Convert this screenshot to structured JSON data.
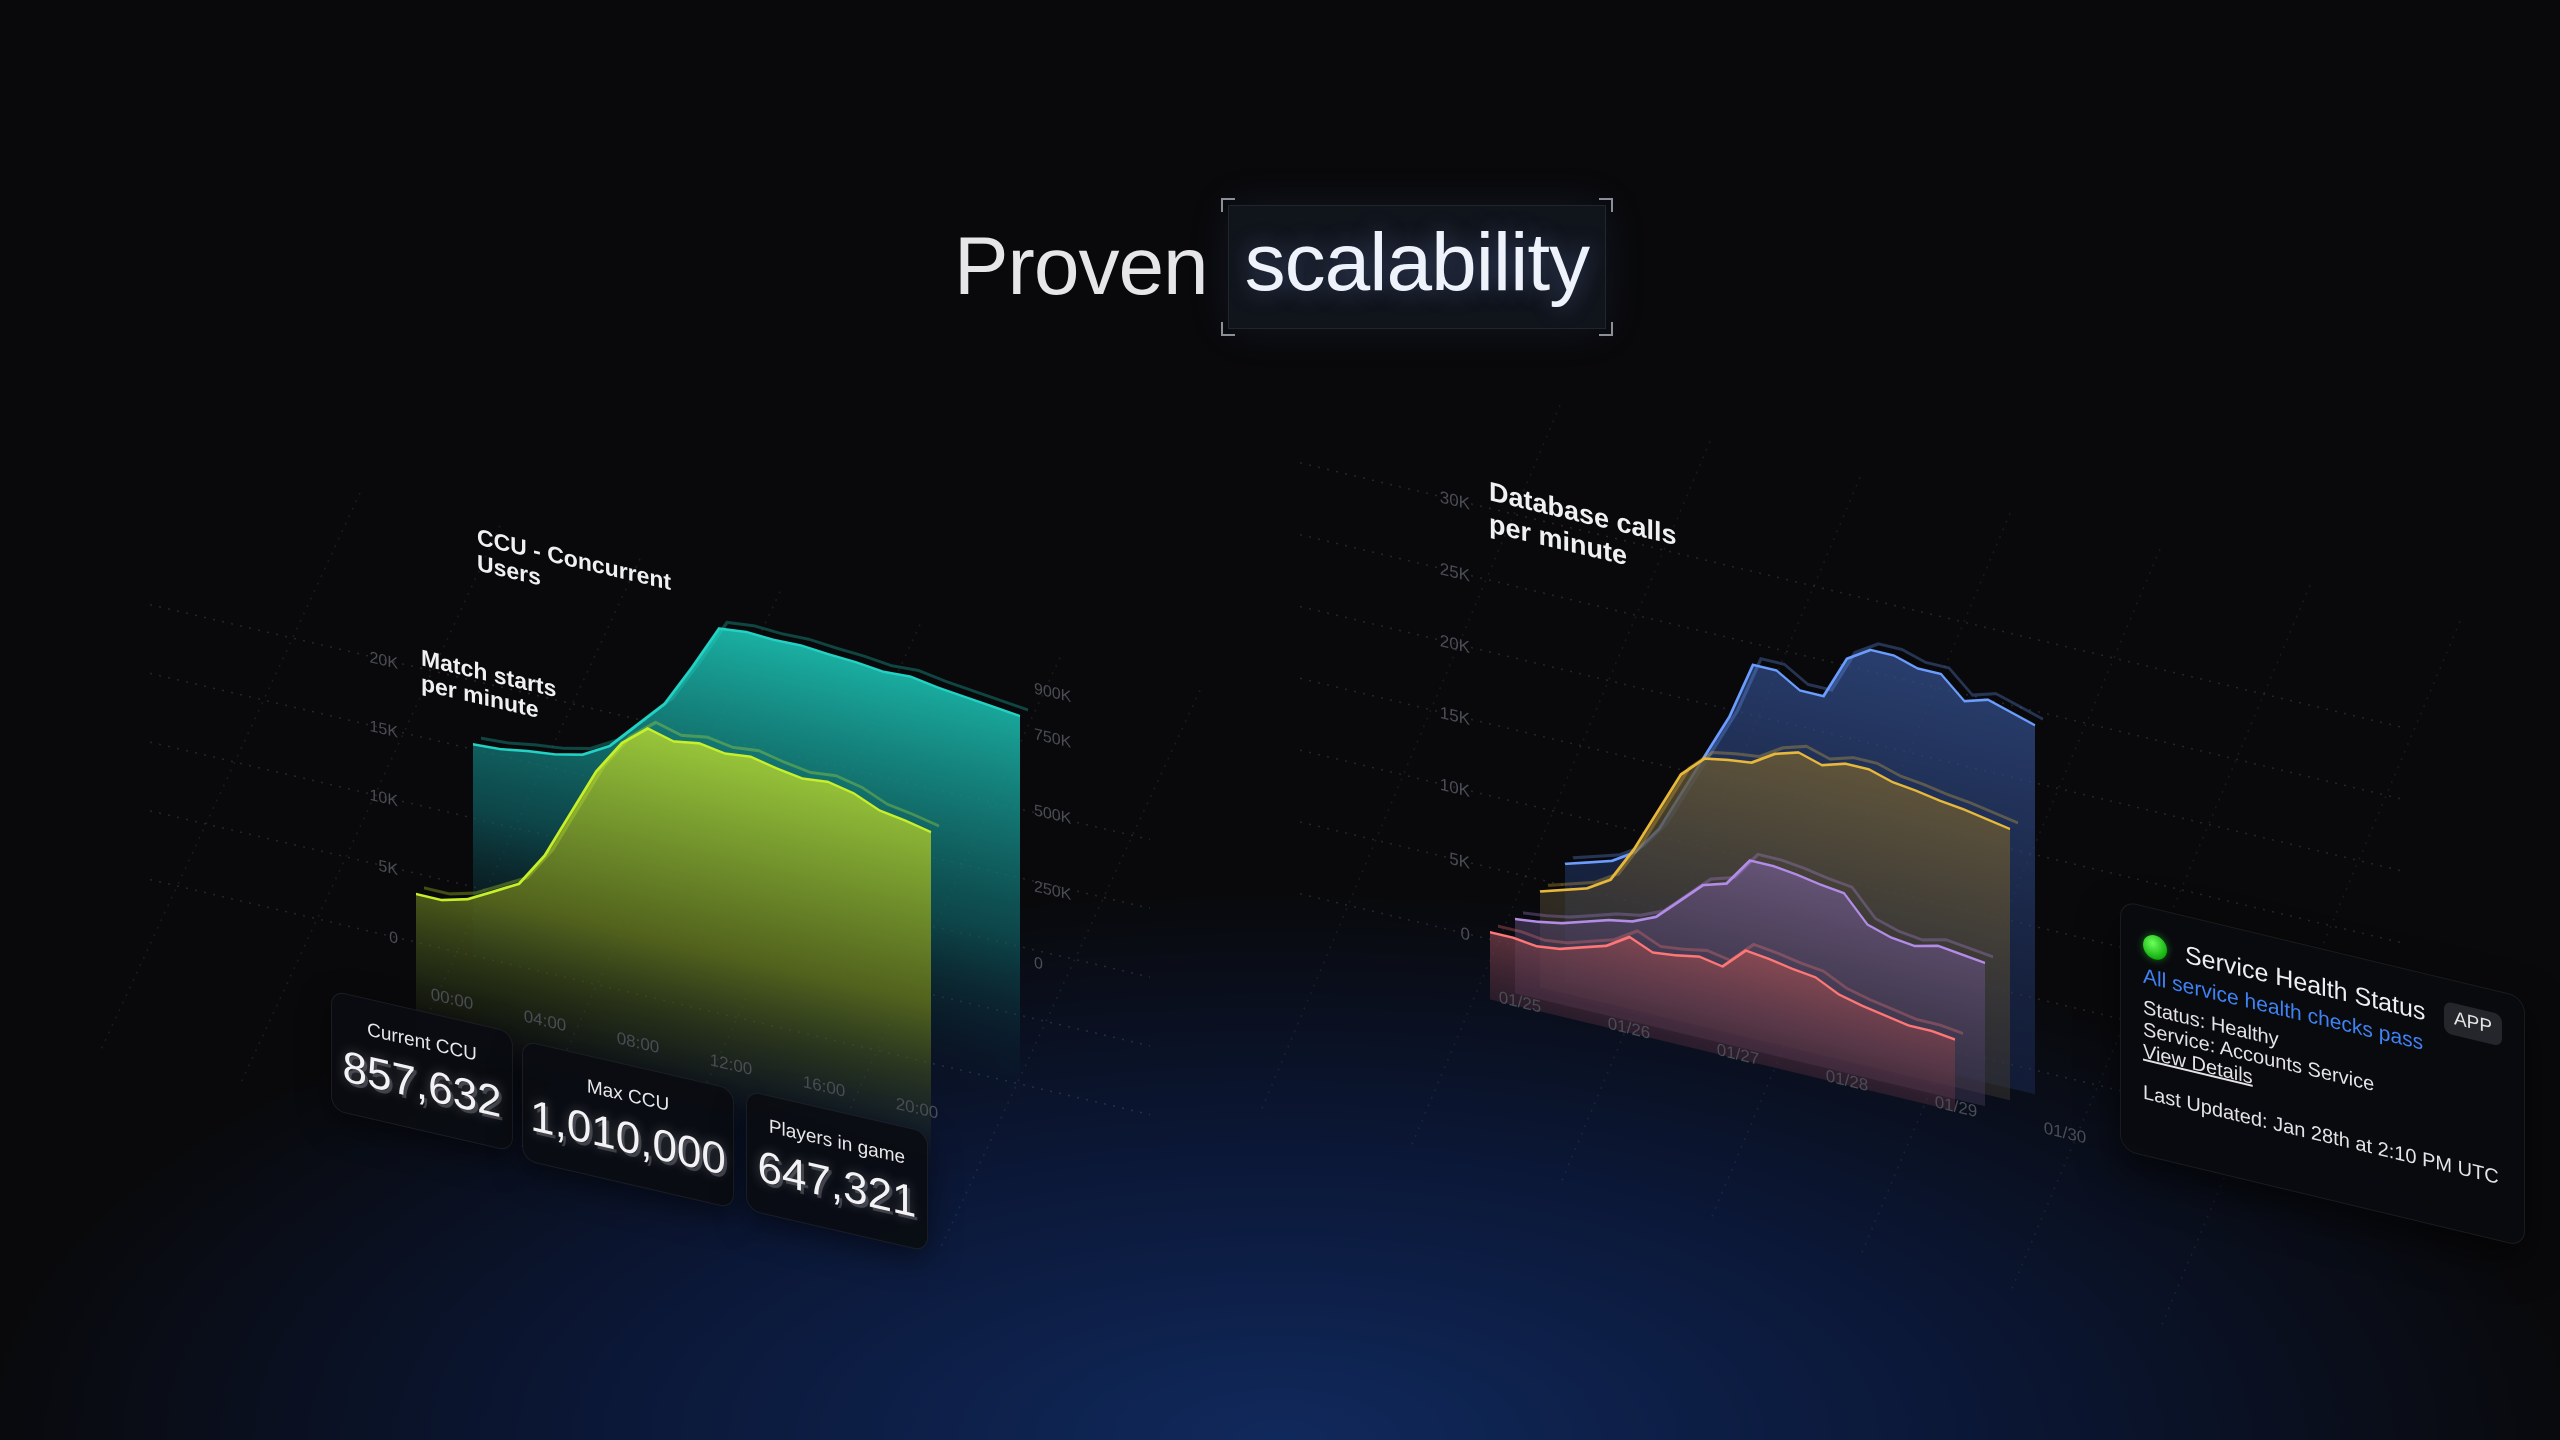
{
  "title": {
    "word1": "Proven",
    "word2": "scalability"
  },
  "colors": {
    "ccu": "#22d3c5",
    "match_starts": "#c8f02a",
    "db_series_1": "#6b9dff",
    "db_series_2": "#e8b83a",
    "db_series_3": "#b28ce6",
    "db_series_4": "#ff7676",
    "status_ok": "#22c51a",
    "link": "#3f82f4"
  },
  "stats": [
    {
      "label": "Current CCU",
      "value": "857,632"
    },
    {
      "label": "Max CCU",
      "value": "1,010,000"
    },
    {
      "label": "Players in game",
      "value": "647,321"
    }
  ],
  "health_card": {
    "icon": "green-status-dot",
    "title": "Service Health Status",
    "badge": "APP",
    "summary": "All service health checks pass",
    "status": "Status: Healthy",
    "service": "Service: Accounts Service",
    "details_link": "View Details",
    "updated": "Last Updated: Jan 28th at 2:10 PM UTC"
  },
  "chart_data": [
    {
      "type": "area",
      "x": [
        "00:00",
        "01:00",
        "02:00",
        "03:00",
        "04:00",
        "05:00",
        "06:00",
        "07:00",
        "08:00",
        "09:00",
        "10:00",
        "11:00",
        "12:00",
        "13:00",
        "14:00",
        "15:00",
        "16:00",
        "17:00",
        "18:00",
        "19:00",
        "20:00"
      ],
      "x_ticks": [
        "00:00",
        "04:00",
        "08:00",
        "12:00",
        "16:00",
        "20:00"
      ],
      "series": [
        {
          "name": "CCU - Concurrent Users",
          "name_lines": [
            "CCU - Concurrent",
            "Users"
          ],
          "y_ticks": [
            "0",
            "250K",
            "500K",
            "750K",
            "900K"
          ],
          "y_tick_values": [
            0,
            250000,
            500000,
            750000,
            900000
          ],
          "values": [
            280000,
            285000,
            300000,
            310000,
            330000,
            380000,
            470000,
            560000,
            700000,
            850000,
            860000,
            855000,
            858000,
            850000,
            845000,
            835000,
            840000,
            825000,
            815000,
            805000,
            795000
          ]
        },
        {
          "name": "Match starts per minute",
          "name_lines": [
            "Match starts",
            "per minute"
          ],
          "y_ticks": [
            "0",
            "5K",
            "10K",
            "15K",
            "20K"
          ],
          "y_tick_values": [
            0,
            5000,
            10000,
            15000,
            20000
          ],
          "values": [
            3500,
            3500,
            4000,
            5000,
            6000,
            8500,
            12000,
            15500,
            18000,
            19500,
            19000,
            19300,
            19000,
            19200,
            18800,
            18500,
            18700,
            18300,
            17500,
            17200,
            16800
          ]
        }
      ],
      "grid": true
    },
    {
      "type": "area",
      "title_lines": [
        "Database calls",
        "per minute"
      ],
      "x": [
        "01/25 00:00",
        "01/25 06:00",
        "01/25 12:00",
        "01/25 18:00",
        "01/26 00:00",
        "01/26 06:00",
        "01/26 12:00",
        "01/26 18:00",
        "01/27 00:00",
        "01/27 06:00",
        "01/27 12:00",
        "01/27 18:00",
        "01/28 00:00",
        "01/28 06:00",
        "01/28 12:00",
        "01/28 18:00",
        "01/29 00:00",
        "01/29 06:00",
        "01/29 12:00",
        "01/29 18:00",
        "01/30 00:00"
      ],
      "x_ticks": [
        "01/25",
        "01/26",
        "01/27",
        "01/28",
        "01/29",
        "01/30"
      ],
      "y_ticks": [
        "0",
        "5K",
        "10K",
        "15K",
        "20K",
        "25K",
        "30K"
      ],
      "y_tick_values": [
        0,
        5000,
        10000,
        15000,
        20000,
        25000,
        30000
      ],
      "ylim": [
        0,
        30000
      ],
      "series": [
        {
          "values": [
            4000,
            4500,
            5000,
            6000,
            8000,
            11000,
            14000,
            17000,
            21000,
            21000,
            20000,
            20000,
            23000,
            24000,
            24000,
            23500,
            23500,
            22000,
            22500,
            22000,
            21500
          ]
        },
        {
          "values": [
            2500,
            3000,
            3500,
            4500,
            7000,
            10000,
            13000,
            14500,
            14800,
            15000,
            16000,
            16500,
            16000,
            16500,
            16500,
            16000,
            15800,
            15500,
            15300,
            15000,
            14700
          ]
        },
        {
          "values": [
            1000,
            1200,
            1500,
            2000,
            2500,
            2800,
            3500,
            5000,
            6500,
            7000,
            9000,
            9000,
            8800,
            8500,
            8300,
            6500,
            6000,
            5800,
            6200,
            6000,
            5800
          ]
        },
        {
          "values": [
            500,
            500,
            300,
            500,
            1000,
            1500,
            2500,
            1800,
            2000,
            2300,
            2000,
            3500,
            3300,
            3000,
            2800,
            2000,
            1600,
            1300,
            1000,
            1000,
            800
          ]
        }
      ],
      "grid": true
    }
  ]
}
